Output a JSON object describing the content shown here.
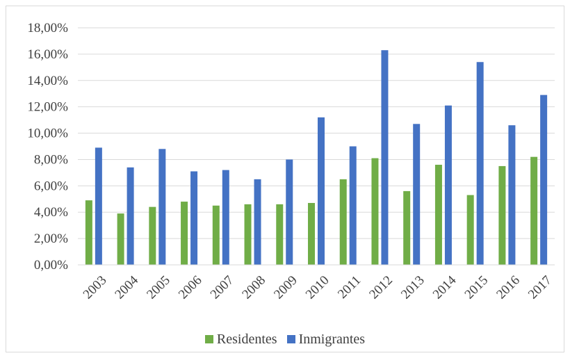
{
  "chart_data": {
    "type": "bar",
    "title": "",
    "xlabel": "",
    "ylabel": "",
    "categories": [
      "2003",
      "2004",
      "2005",
      "2006",
      "2007",
      "2008",
      "2009",
      "2010",
      "2011",
      "2012",
      "2013",
      "2014",
      "2015",
      "2016",
      "2017"
    ],
    "series": [
      {
        "name": "Residentes",
        "color": "#70ad47",
        "values": [
          4.9,
          3.9,
          4.4,
          4.8,
          4.5,
          4.6,
          4.6,
          4.7,
          6.5,
          8.1,
          5.6,
          7.6,
          5.3,
          7.5,
          8.2
        ]
      },
      {
        "name": "Inmigrantes",
        "color": "#4472c4",
        "values": [
          8.9,
          7.4,
          8.8,
          7.1,
          7.2,
          6.5,
          8.0,
          11.2,
          9.0,
          16.3,
          10.7,
          12.1,
          15.4,
          10.6,
          12.9
        ]
      }
    ],
    "ylim": [
      0,
      18
    ],
    "yticks": [
      "0,00%",
      "2,00%",
      "4,00%",
      "6,00%",
      "8,00%",
      "10,00%",
      "12,00%",
      "14,00%",
      "16,00%",
      "18,00%"
    ],
    "grid": true,
    "legend_position": "bottom"
  }
}
